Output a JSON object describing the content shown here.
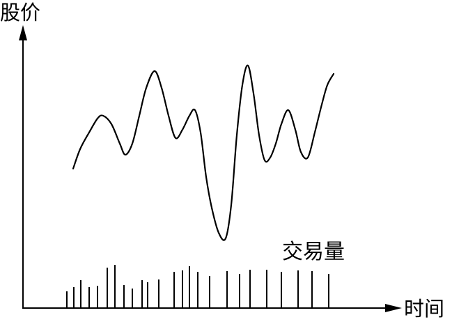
{
  "chart_data": {
    "type": "line",
    "title": "",
    "ylabel": "股价",
    "xlabel": "时间",
    "ylim": [
      0,
      100
    ],
    "price": {
      "x": [
        105,
        115,
        128,
        140,
        148,
        160,
        172,
        180,
        190,
        200,
        210,
        222,
        232,
        242,
        252,
        262,
        272,
        280,
        288,
        296,
        304,
        314,
        324,
        332,
        340,
        348,
        356,
        364,
        372,
        380,
        388,
        396,
        404,
        414,
        424,
        432,
        442,
        452,
        462,
        470,
        479
      ],
      "y": [
        50,
        57,
        63,
        68,
        69,
        66,
        59,
        55,
        59,
        69,
        79,
        85,
        79,
        69,
        61,
        64,
        69,
        71,
        63,
        47,
        36,
        27,
        25,
        37,
        62,
        80,
        87,
        77,
        62,
        53,
        54,
        59,
        66,
        71,
        64,
        56,
        54,
        63,
        73,
        80,
        84
      ]
    },
    "volume": {
      "label": "交易量",
      "x": [
        96,
        106,
        116,
        128,
        140,
        154,
        165,
        178,
        190,
        204,
        212,
        228,
        250,
        262,
        272,
        284,
        301,
        326,
        344,
        359,
        383,
        404,
        428,
        448,
        472
      ],
      "values": [
        24,
        30,
        40,
        30,
        32,
        58,
        62,
        33,
        28,
        40,
        37,
        41,
        52,
        54,
        60,
        52,
        46,
        53,
        49,
        55,
        55,
        52,
        54,
        53,
        49
      ]
    }
  }
}
